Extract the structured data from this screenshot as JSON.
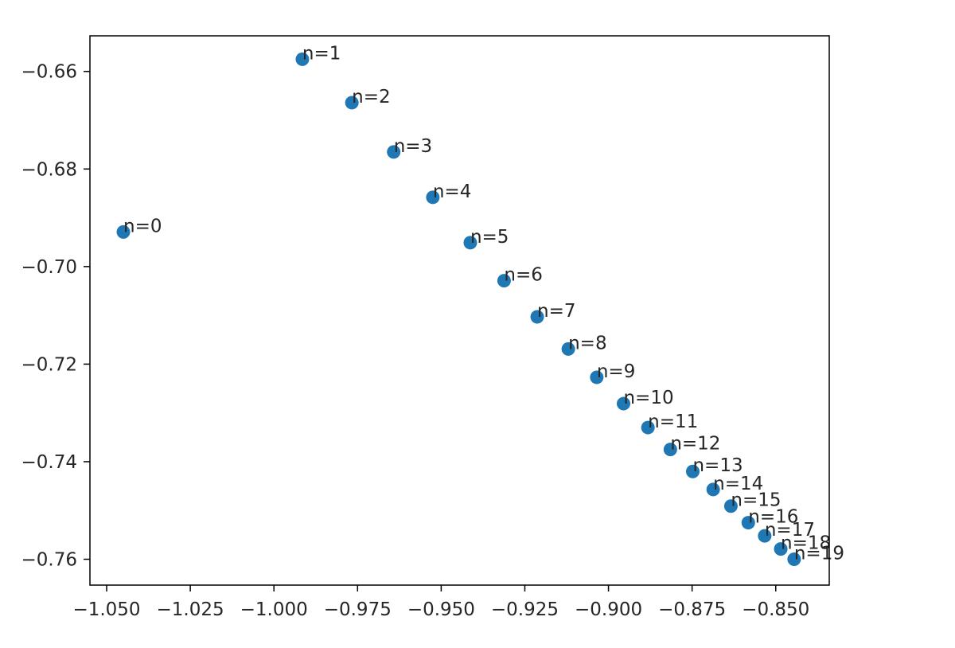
{
  "chart_data": {
    "type": "scatter",
    "title": "",
    "xlabel": "",
    "ylabel": "",
    "xlim": [
      -1.055,
      -0.834
    ],
    "ylim": [
      -0.7653,
      -0.6527
    ],
    "grid": false,
    "marker_color": "#1f77b4",
    "x_ticks": [
      {
        "value": -1.05,
        "label": "−1.050"
      },
      {
        "value": -1.025,
        "label": "−1.025"
      },
      {
        "value": -1.0,
        "label": "−1.000"
      },
      {
        "value": -0.975,
        "label": "−0.975"
      },
      {
        "value": -0.95,
        "label": "−0.950"
      },
      {
        "value": -0.925,
        "label": "−0.925"
      },
      {
        "value": -0.9,
        "label": "−0.900"
      },
      {
        "value": -0.875,
        "label": "−0.875"
      },
      {
        "value": -0.85,
        "label": "−0.850"
      }
    ],
    "y_ticks": [
      {
        "value": -0.66,
        "label": "−0.66"
      },
      {
        "value": -0.68,
        "label": "−0.68"
      },
      {
        "value": -0.7,
        "label": "−0.70"
      },
      {
        "value": -0.72,
        "label": "−0.72"
      },
      {
        "value": -0.74,
        "label": "−0.74"
      },
      {
        "value": -0.76,
        "label": "−0.76"
      }
    ],
    "points": [
      {
        "label": "n=0",
        "x": -1.045,
        "y": -0.6929
      },
      {
        "label": "n=1",
        "x": -0.9915,
        "y": -0.6575
      },
      {
        "label": "n=2",
        "x": -0.9767,
        "y": -0.6664
      },
      {
        "label": "n=3",
        "x": -0.9642,
        "y": -0.6765
      },
      {
        "label": "n=4",
        "x": -0.9525,
        "y": -0.6858
      },
      {
        "label": "n=5",
        "x": -0.9413,
        "y": -0.6951
      },
      {
        "label": "n=6",
        "x": -0.9312,
        "y": -0.7029
      },
      {
        "label": "n=7",
        "x": -0.9213,
        "y": -0.7103
      },
      {
        "label": "n=8",
        "x": -0.912,
        "y": -0.7169
      },
      {
        "label": "n=9",
        "x": -0.9035,
        "y": -0.7227
      },
      {
        "label": "n=10",
        "x": -0.8955,
        "y": -0.7281
      },
      {
        "label": "n=11",
        "x": -0.8882,
        "y": -0.733
      },
      {
        "label": "n=12",
        "x": -0.8815,
        "y": -0.7375
      },
      {
        "label": "n=13",
        "x": -0.8748,
        "y": -0.742
      },
      {
        "label": "n=14",
        "x": -0.8687,
        "y": -0.7457
      },
      {
        "label": "n=15",
        "x": -0.8634,
        "y": -0.7491
      },
      {
        "label": "n=16",
        "x": -0.8582,
        "y": -0.7525
      },
      {
        "label": "n=17",
        "x": -0.8533,
        "y": -0.7552
      },
      {
        "label": "n=18",
        "x": -0.8485,
        "y": -0.7579
      },
      {
        "label": "n=19",
        "x": -0.8445,
        "y": -0.76
      }
    ]
  }
}
